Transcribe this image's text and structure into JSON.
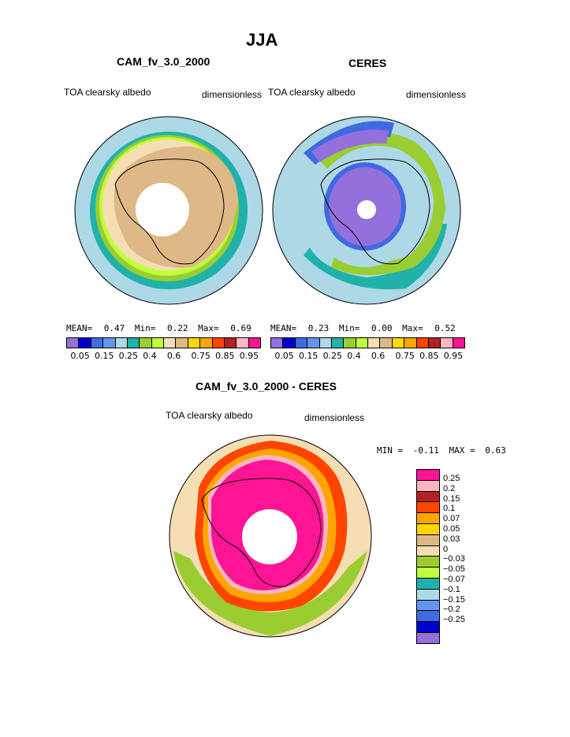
{
  "title": "JJA",
  "panel_left": {
    "title": "CAM_fv_3.0_2000",
    "var_label": "TOA clearsky albedo",
    "units": "dimensionless",
    "stats": {
      "mean_label": "MEAN=",
      "mean": "0.47",
      "min_label": "Min=",
      "min": "0.22",
      "max_label": "Max=",
      "max": "0.69"
    }
  },
  "panel_right": {
    "title": "CERES",
    "var_label": "TOA clearsky albedo",
    "units": "dimensionless",
    "stats": {
      "mean_label": "MEAN=",
      "mean": "0.23",
      "min_label": "Min=",
      "min": "0.00",
      "max_label": "Max=",
      "max": "0.52"
    }
  },
  "panel_diff": {
    "title": "CAM_fv_3.0_2000 - CERES",
    "var_label": "TOA clearsky albedo",
    "units": "dimensionless",
    "stats": {
      "min_label": "MIN =",
      "min": "-0.11",
      "max_label": "MAX =",
      "max": "0.63"
    }
  },
  "colorbar_abs": {
    "colors": [
      "#9370db",
      "#0000cd",
      "#4169e1",
      "#6495ed",
      "#add8e6",
      "#20b2aa",
      "#9acd32",
      "#c0ff3e",
      "#f5deb3",
      "#deb887",
      "#ffd700",
      "#ffa500",
      "#ff4500",
      "#b22222",
      "#ffb6c1",
      "#ff1493"
    ],
    "labels": [
      "0.05",
      "0.15",
      "0.25",
      "0.4",
      "0.6",
      "0.75",
      "0.85",
      "0.95"
    ]
  },
  "colorbar_diff": {
    "colors": [
      "#ff1493",
      "#ffb6c1",
      "#b22222",
      "#ff4500",
      "#ffa500",
      "#ffd700",
      "#deb887",
      "#f5deb3",
      "#9acd32",
      "#c0ff3e",
      "#20b2aa",
      "#add8e6",
      "#6495ed",
      "#4169e1",
      "#0000cd",
      "#9370db"
    ],
    "labels": [
      "0.25",
      "0.2",
      "0.15",
      "0.1",
      "0.07",
      "0.05",
      "0.03",
      "0",
      "−0.03",
      "−0.05",
      "−0.07",
      "−0.1",
      "−0.15",
      "−0.2",
      "−0.25"
    ]
  }
}
